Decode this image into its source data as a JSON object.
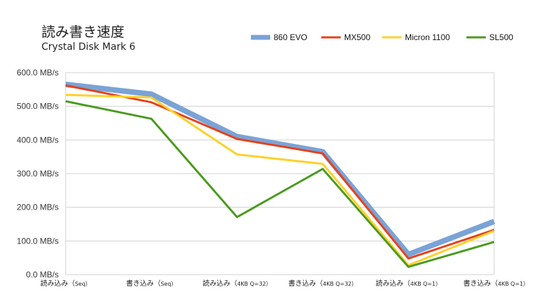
{
  "chart_data": {
    "type": "line",
    "title": "読み書き速度",
    "subtitle": "Crystal Disk Mark 6",
    "xlabel": "",
    "ylabel": "",
    "ylim": [
      0,
      600
    ],
    "yticks": [
      0,
      100,
      200,
      300,
      400,
      500,
      600
    ],
    "ytick_labels": [
      "0.0 MB/s",
      "100.0 MB/s",
      "200.0 MB/s",
      "300.0 MB/s",
      "400.0 MB/s",
      "500.0 MB/s",
      "600.0 MB/s"
    ],
    "categories": [
      {
        "main": "読み込み（",
        "sub": "Seq）"
      },
      {
        "main": "書き込み（",
        "sub": "Seq）"
      },
      {
        "main": "読み込み（",
        "sub": "4KB Q=32）"
      },
      {
        "main": "書き込み（",
        "sub": "4KB Q=32）"
      },
      {
        "main": "読み込み（",
        "sub": "4KB Q=1）"
      },
      {
        "main": "書き込み（",
        "sub": "4KB Q=1）"
      }
    ],
    "grid": true,
    "legend_position": "top-right",
    "series": [
      {
        "name": "860 EVO",
        "color": "#7aa3d6",
        "values": [
          565,
          536,
          410,
          365,
          60,
          158
        ]
      },
      {
        "name": "MX500",
        "color": "#e8401a",
        "values": [
          562,
          512,
          403,
          360,
          48,
          133
        ]
      },
      {
        "name": "Micron 1100",
        "color": "#ffd02a",
        "values": [
          534,
          526,
          357,
          329,
          28,
          130
        ]
      },
      {
        "name": "SL500",
        "color": "#4a9a1e",
        "values": [
          515,
          463,
          171,
          314,
          23,
          97
        ]
      }
    ]
  }
}
